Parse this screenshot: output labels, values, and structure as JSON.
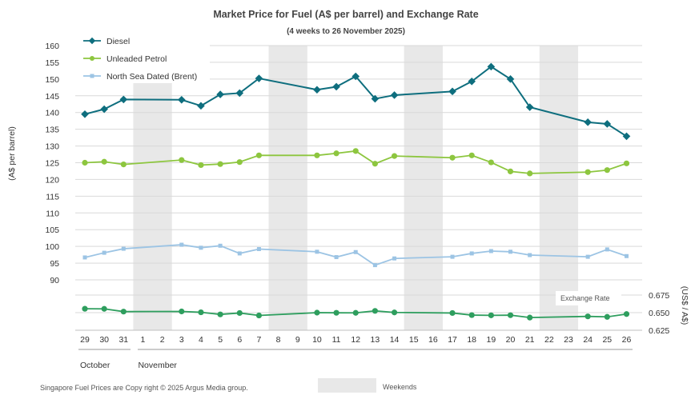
{
  "chart_data": {
    "type": "line",
    "title": "Market Price for Fuel (A$ per barrel) and Exchange Rate",
    "subtitle": "(4 weeks to 26 November 2025)",
    "ylabel": "(A$ per barrel)",
    "ylabel_right": "(US$ / A$)",
    "ylim": [
      90,
      160
    ],
    "yticks": [
      90,
      95,
      100,
      105,
      110,
      115,
      120,
      125,
      130,
      135,
      140,
      145,
      150,
      155,
      160
    ],
    "ylim_right": [
      0.625,
      0.675
    ],
    "yticks_right": [
      "0.625",
      "0.650",
      "0.675"
    ],
    "categories": [
      "29",
      "30",
      "31",
      "1",
      "2",
      "3",
      "4",
      "5",
      "6",
      "7",
      "8",
      "9",
      "10",
      "11",
      "12",
      "13",
      "14",
      "15",
      "16",
      "17",
      "18",
      "19",
      "20",
      "21",
      "22",
      "23",
      "24",
      "25",
      "26"
    ],
    "months": [
      {
        "label": "October",
        "start": "29",
        "end": "31"
      },
      {
        "label": "November",
        "start": "1",
        "end": "26"
      }
    ],
    "weekends": [
      [
        "1",
        "2"
      ],
      [
        "8",
        "9"
      ],
      [
        "15",
        "16"
      ],
      [
        "22",
        "23"
      ]
    ],
    "series": [
      {
        "name": "Diesel",
        "color": "#0e6e7e",
        "marker": "diamond",
        "values": [
          139.5,
          141.0,
          143.9,
          null,
          null,
          143.8,
          142.0,
          145.4,
          145.8,
          150.2,
          null,
          null,
          146.8,
          147.7,
          150.8,
          144.1,
          145.2,
          null,
          null,
          146.3,
          149.3,
          153.7,
          150.0,
          141.6,
          null,
          null,
          137.1,
          136.6,
          132.9
        ]
      },
      {
        "name": "Unleaded Petrol",
        "color": "#8dc63f",
        "marker": "circle",
        "values": [
          125.0,
          125.3,
          124.5,
          null,
          null,
          125.8,
          124.3,
          124.6,
          125.2,
          127.2,
          null,
          null,
          127.2,
          127.8,
          128.5,
          124.7,
          127.0,
          null,
          null,
          126.5,
          127.2,
          125.1,
          122.4,
          121.8,
          null,
          null,
          122.2,
          122.8,
          124.8
        ]
      },
      {
        "name": "North Sea Dated (Brent)",
        "color": "#9cc4e4",
        "marker": "square",
        "values": [
          96.7,
          98.1,
          99.3,
          null,
          null,
          100.5,
          99.6,
          100.2,
          97.9,
          99.2,
          null,
          null,
          98.4,
          96.8,
          98.3,
          94.4,
          96.4,
          null,
          null,
          96.9,
          97.9,
          98.6,
          98.4,
          97.4,
          null,
          null,
          96.9,
          99.1,
          97.1
        ]
      },
      {
        "name": "Exchange Rate",
        "color": "#2e9e5e",
        "marker": "circle",
        "axis": "right",
        "values": [
          0.6555,
          0.6554,
          0.6515,
          null,
          null,
          0.6517,
          0.6505,
          0.6475,
          0.6495,
          0.646,
          null,
          null,
          0.65,
          0.6498,
          0.6497,
          0.6525,
          0.6503,
          null,
          null,
          0.6495,
          0.6465,
          0.6462,
          0.6464,
          0.643,
          null,
          null,
          0.6447,
          0.644,
          0.648
        ]
      }
    ],
    "legend_position": "top-left",
    "footer": "Singapore  Fuel Prices are  Copy right © 2025 Argus Media  group.",
    "weekend_legend": "Weekends"
  }
}
